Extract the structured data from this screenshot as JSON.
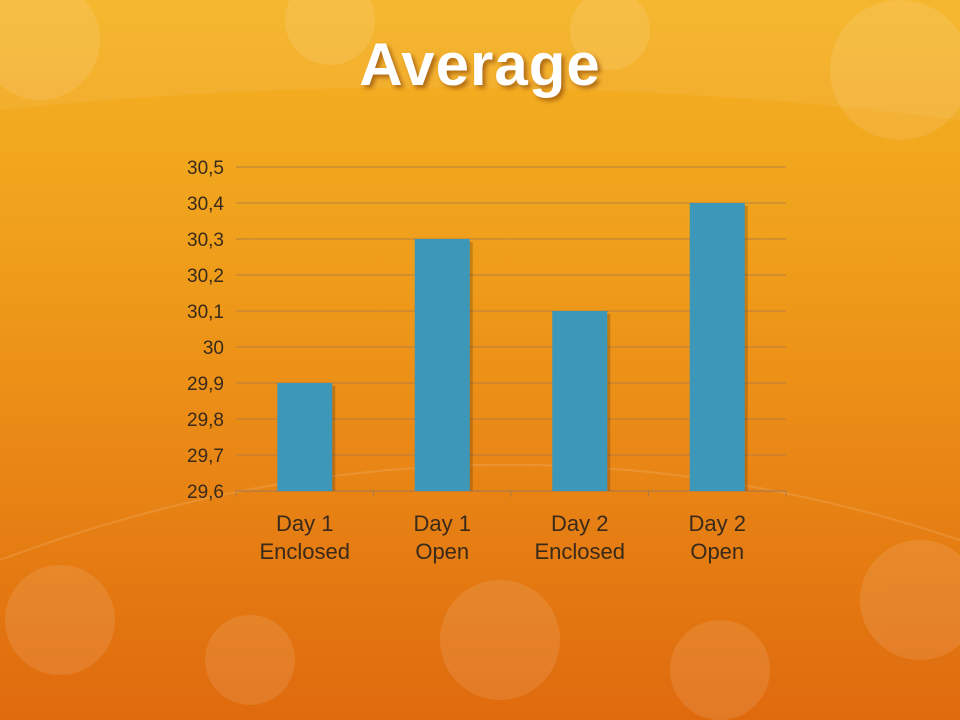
{
  "slide": {
    "title": "Average"
  },
  "colors": {
    "bar": "#3d97b8",
    "gridline": "#b07a46",
    "text": "#3a2a1a"
  },
  "chart_data": {
    "type": "bar",
    "categories": [
      [
        "Day 1",
        "Enclosed"
      ],
      [
        "Day 1",
        "Open"
      ],
      [
        "Day 2",
        "Enclosed"
      ],
      [
        "Day 2",
        "Open"
      ]
    ],
    "values": [
      29.9,
      30.3,
      30.1,
      30.4
    ],
    "ylim": [
      29.6,
      30.5
    ],
    "yticks": [
      "29,6",
      "29,7",
      "29,8",
      "29,9",
      "30",
      "30,1",
      "30,2",
      "30,3",
      "30,4",
      "30,5"
    ],
    "grid": true,
    "legend": "none"
  }
}
